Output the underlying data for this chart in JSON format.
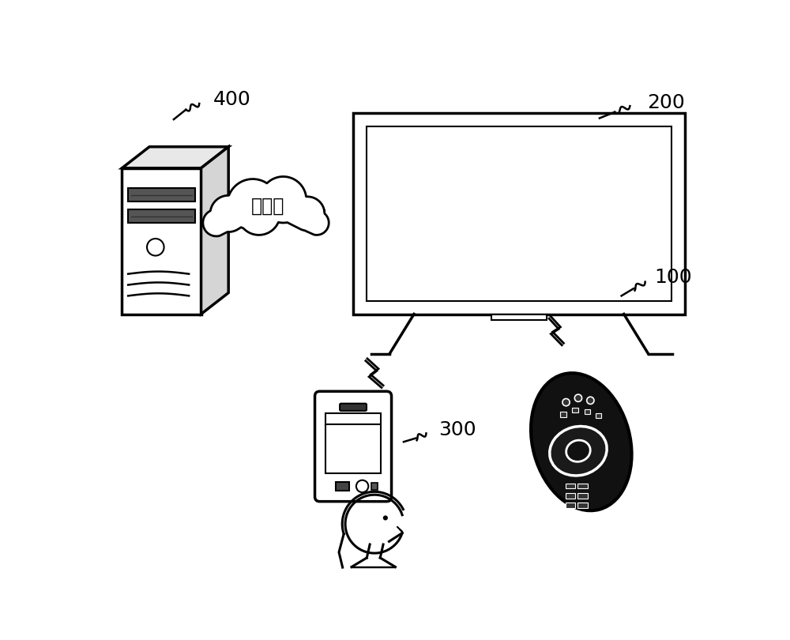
{
  "bg_color": "#ffffff",
  "label_400": "400",
  "label_200": "200",
  "label_300": "300",
  "label_100": "100",
  "cloud_text": "互联网",
  "line_color": "#000000",
  "lw": 2.0
}
